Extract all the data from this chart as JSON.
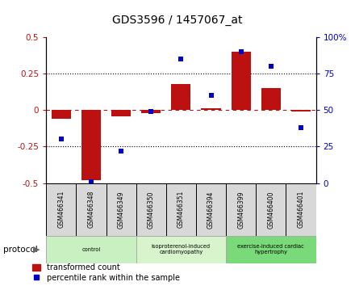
{
  "title": "GDS3596 / 1457067_at",
  "samples": [
    "GSM466341",
    "GSM466348",
    "GSM466349",
    "GSM466350",
    "GSM466351",
    "GSM466394",
    "GSM466399",
    "GSM466400",
    "GSM466401"
  ],
  "transformed_count": [
    -0.06,
    -0.48,
    -0.04,
    -0.02,
    0.18,
    0.01,
    0.4,
    0.15,
    -0.01
  ],
  "percentile_rank": [
    30,
    1,
    22,
    49,
    85,
    60,
    90,
    80,
    38
  ],
  "groups": [
    {
      "label": "control",
      "indices": [
        0,
        1,
        2
      ],
      "color": "#c8f0c0"
    },
    {
      "label": "isoproterenol-induced\ncardiomyopathy",
      "indices": [
        3,
        4,
        5
      ],
      "color": "#d8f4cc"
    },
    {
      "label": "exercise-induced cardiac\nhypertrophy",
      "indices": [
        6,
        7,
        8
      ],
      "color": "#7ada7a"
    }
  ],
  "bar_color": "#bb1111",
  "scatter_color": "#0000cc",
  "ylim_left": [
    -0.5,
    0.5
  ],
  "ylim_right": [
    0,
    100
  ],
  "yticks_left": [
    -0.5,
    -0.25,
    0.0,
    0.25,
    0.5
  ],
  "yticks_right": [
    0,
    25,
    50,
    75,
    100
  ],
  "hlines": [
    -0.25,
    0.25
  ],
  "bar_width": 0.65,
  "figsize": [
    4.4,
    3.54
  ],
  "dpi": 100
}
